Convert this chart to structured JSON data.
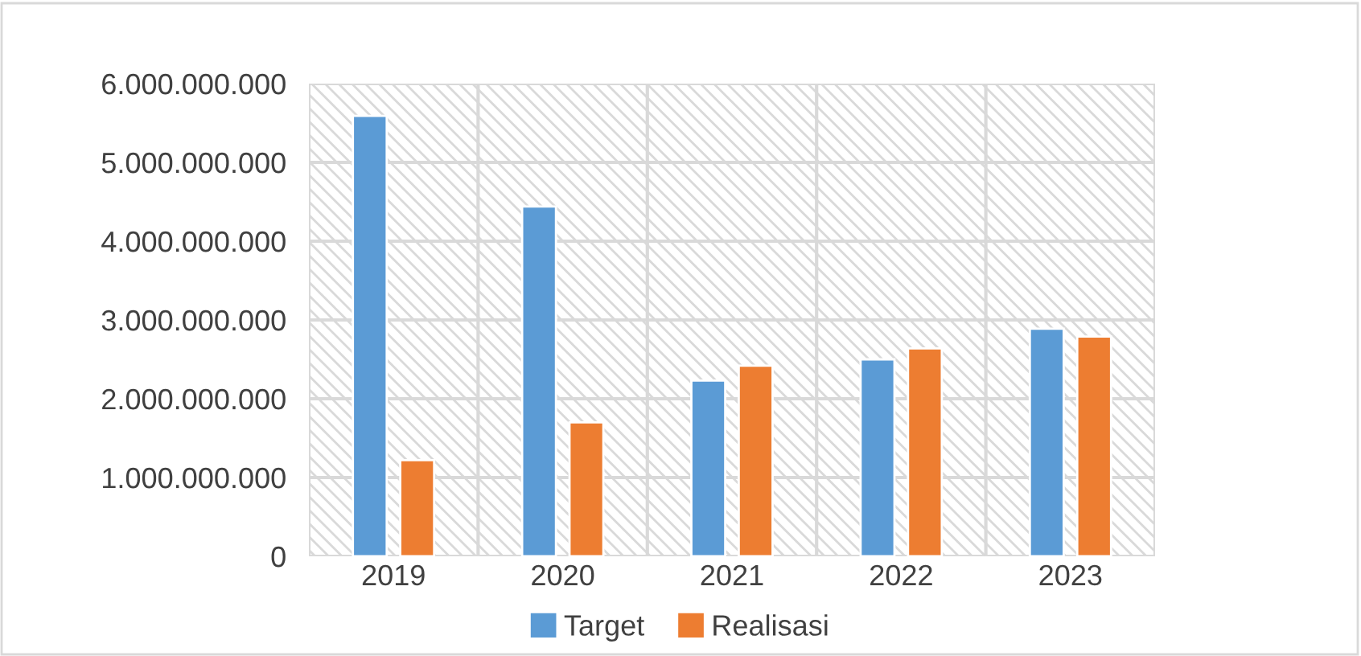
{
  "chart_data": {
    "type": "bar",
    "categories": [
      "2019",
      "2020",
      "2021",
      "2022",
      "2023"
    ],
    "series": [
      {
        "name": "Target",
        "color": "#5b9bd5",
        "values": [
          5590000000,
          4440000000,
          2230000000,
          2500000000,
          2890000000
        ]
      },
      {
        "name": "Realisasi",
        "color": "#ed7d31",
        "values": [
          1220000000,
          1700000000,
          2420000000,
          2640000000,
          2790000000
        ]
      }
    ],
    "ylim": [
      0,
      6000000000
    ],
    "yticks": [
      0,
      {
        "value": 1000000000,
        "label": "1.000.000.000"
      },
      {
        "value": 2000000000,
        "label": "2.000.000.000"
      },
      {
        "value": 3000000000,
        "label": "3.000.000.000"
      },
      {
        "value": 4000000000,
        "label": "4.000.000.000"
      },
      {
        "value": 5000000000,
        "label": "5.000.000.000"
      },
      {
        "value": 6000000000,
        "label": "6.000.000.000"
      }
    ],
    "grid": true,
    "legend": "bottom"
  }
}
